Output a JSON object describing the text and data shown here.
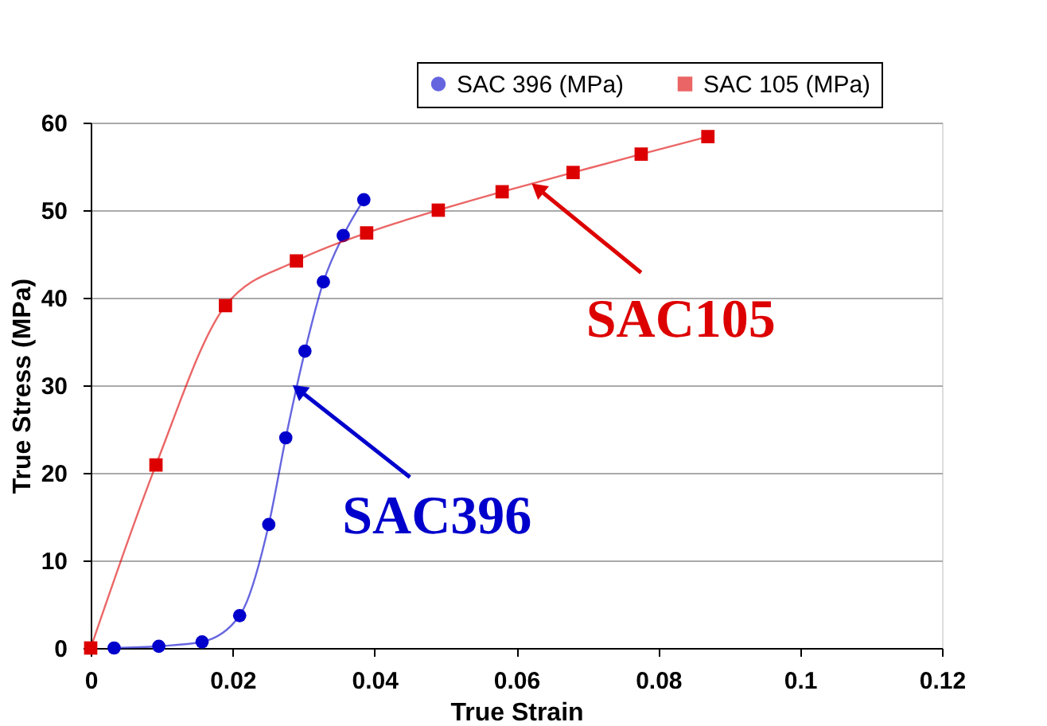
{
  "chart_data": {
    "type": "line",
    "xlabel": "True Strain",
    "ylabel": "True Stress (MPa)",
    "xlim": [
      0,
      0.12
    ],
    "ylim": [
      0,
      60
    ],
    "xticks": [
      0,
      0.02,
      0.04,
      0.06,
      0.08,
      0.1,
      0.12
    ],
    "yticks": [
      0,
      10,
      20,
      30,
      40,
      50,
      60
    ],
    "grid": "y",
    "legend": "top right",
    "line_style": "solid",
    "series": [
      {
        "name": "SAC 396 (MPa)",
        "color": "#0000cc",
        "marker": "circle",
        "x": [
          0.0033,
          0.0096,
          0.0157,
          0.021,
          0.0251,
          0.0275,
          0.0302,
          0.0328,
          0.0356,
          0.0385
        ],
        "values": [
          0,
          0.2,
          0.7,
          3.7,
          14.1,
          24,
          33.9,
          41.8,
          47.1,
          51.2
        ]
      },
      {
        "name": "SAC 105 (MPa)",
        "color": "#dd0000",
        "marker": "square",
        "x": [
          0,
          0.0092,
          0.019,
          0.029,
          0.0389,
          0.049,
          0.058,
          0.068,
          0.0776,
          0.087
        ],
        "values": [
          0,
          20.9,
          39.1,
          44.2,
          47.4,
          50,
          52.1,
          54.3,
          56.4,
          58.4
        ]
      }
    ],
    "annotations": [
      {
        "text": "SAC396",
        "x": 0.0293,
        "y": 29.5
      },
      {
        "text": "SAC105",
        "x": 0.063,
        "y": 52.5
      }
    ]
  }
}
